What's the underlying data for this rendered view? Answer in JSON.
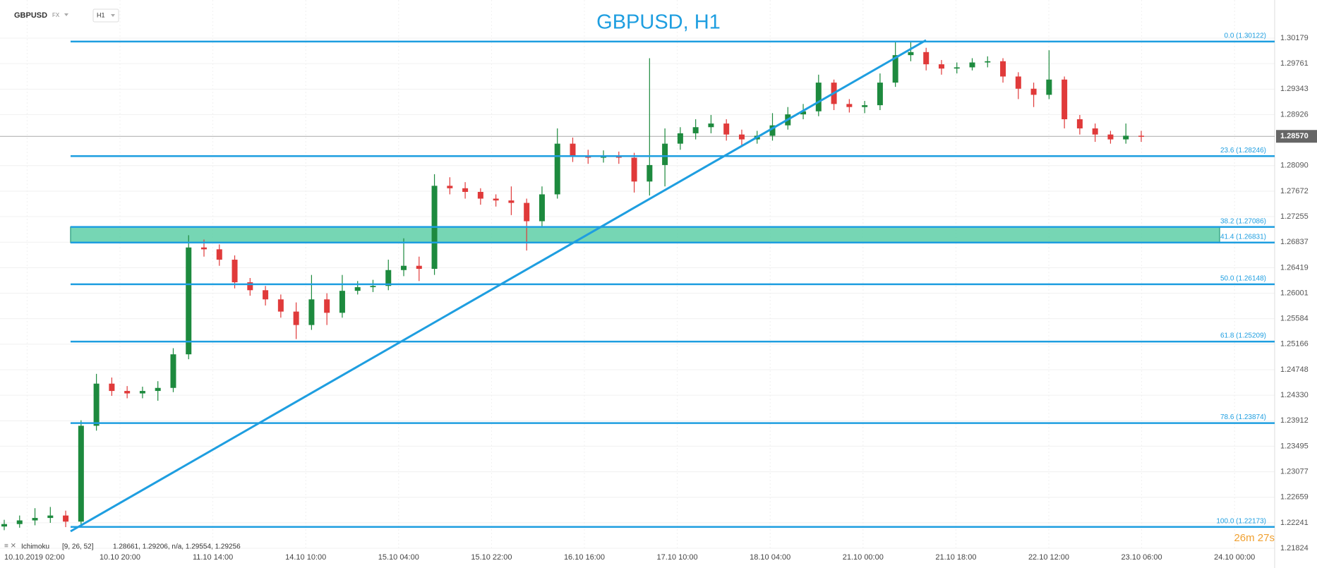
{
  "header": {
    "symbol": "GBPUSD",
    "market": "FX",
    "timeframe": "H1"
  },
  "chart_data": {
    "type": "candlestick",
    "title": "GBPUSD, H1",
    "open": [
      1.2218,
      1.2222,
      1.2228,
      1.2232,
      1.2236,
      1.2226,
      1.2383,
      1.2452,
      1.244,
      1.2436,
      1.244,
      1.2445,
      1.25,
      1.2675,
      1.2672,
      1.2655,
      1.2618,
      1.2605,
      1.259,
      1.257,
      1.2548,
      1.259,
      1.2568,
      1.2604,
      1.261,
      1.2612,
      1.2638,
      1.2645,
      1.264,
      1.2776,
      1.2772,
      1.2766,
      1.2755,
      1.2752,
      1.2748,
      1.2718,
      1.2762,
      1.2845,
      1.2826,
      1.2822,
      1.2826,
      1.2822,
      1.2783,
      1.281,
      1.2845,
      1.2862,
      1.2872,
      1.2878,
      1.286,
      1.2852,
      1.2858,
      1.2875,
      1.2893,
      1.2898,
      1.2945,
      1.291,
      1.2905,
      1.2908,
      1.2945,
      1.299,
      1.2995,
      1.2975,
      1.2968,
      1.297,
      1.2978,
      1.298,
      1.2955,
      1.2935,
      1.2925,
      1.295,
      1.2885,
      1.287,
      1.286,
      1.2852,
      1.2858
    ],
    "high": [
      1.2229,
      1.2236,
      1.2248,
      1.225,
      1.2244,
      1.2392,
      1.2468,
      1.2462,
      1.2448,
      1.2447,
      1.2456,
      1.251,
      1.2695,
      1.2688,
      1.268,
      1.2662,
      1.2625,
      1.2612,
      1.2598,
      1.2585,
      1.263,
      1.26,
      1.263,
      1.262,
      1.2622,
      1.2655,
      1.269,
      1.266,
      1.2795,
      1.279,
      1.2782,
      1.2772,
      1.2762,
      1.2775,
      1.2755,
      1.2775,
      1.287,
      1.2855,
      1.2835,
      1.2834,
      1.2832,
      1.283,
      1.2985,
      1.287,
      1.2872,
      1.2885,
      1.2892,
      1.2885,
      1.2868,
      1.2866,
      1.2895,
      1.2905,
      1.291,
      1.2958,
      1.295,
      1.2918,
      1.2915,
      1.296,
      1.3012,
      1.3012,
      1.3002,
      1.2982,
      1.2978,
      1.2985,
      1.2988,
      1.2985,
      1.2962,
      1.2945,
      1.2998,
      1.2955,
      1.2892,
      1.2878,
      1.2866,
      1.2878,
      1.2866
    ],
    "low": [
      1.2212,
      1.2216,
      1.222,
      1.2224,
      1.2217,
      1.222,
      1.2375,
      1.2432,
      1.2428,
      1.2428,
      1.2424,
      1.2438,
      1.2492,
      1.266,
      1.2645,
      1.2608,
      1.2596,
      1.258,
      1.256,
      1.2525,
      1.254,
      1.2548,
      1.256,
      1.2598,
      1.2602,
      1.2605,
      1.2628,
      1.262,
      1.263,
      1.2762,
      1.2755,
      1.2745,
      1.2742,
      1.2728,
      1.267,
      1.271,
      1.2755,
      1.2815,
      1.2812,
      1.2814,
      1.2812,
      1.2765,
      1.276,
      1.2775,
      1.2835,
      1.2852,
      1.2862,
      1.285,
      1.2842,
      1.2845,
      1.285,
      1.2868,
      1.2885,
      1.289,
      1.29,
      1.2896,
      1.2895,
      1.29,
      1.2938,
      1.298,
      1.2965,
      1.2958,
      1.296,
      1.2965,
      1.297,
      1.2945,
      1.2918,
      1.2905,
      1.2918,
      1.287,
      1.286,
      1.2848,
      1.2845,
      1.2845,
      1.2848
    ],
    "close": [
      1.2222,
      1.2228,
      1.2232,
      1.2236,
      1.2226,
      1.2383,
      1.2452,
      1.244,
      1.2436,
      1.244,
      1.2445,
      1.25,
      1.2675,
      1.2672,
      1.2655,
      1.2618,
      1.2605,
      1.259,
      1.257,
      1.2548,
      1.259,
      1.2568,
      1.2604,
      1.261,
      1.2612,
      1.2638,
      1.2645,
      1.264,
      1.2776,
      1.2772,
      1.2766,
      1.2755,
      1.2752,
      1.2748,
      1.2718,
      1.2762,
      1.2845,
      1.2826,
      1.2822,
      1.2826,
      1.2822,
      1.2783,
      1.281,
      1.2845,
      1.2862,
      1.2872,
      1.2878,
      1.286,
      1.2852,
      1.2858,
      1.2875,
      1.2893,
      1.2898,
      1.2945,
      1.291,
      1.2905,
      1.2908,
      1.2945,
      1.299,
      1.2995,
      1.2975,
      1.2968,
      1.297,
      1.2978,
      1.298,
      1.2955,
      1.2935,
      1.2925,
      1.295,
      1.2885,
      1.287,
      1.286,
      1.2852,
      1.2858,
      1.2857
    ],
    "up_color": "#1d8a3e",
    "down_color": "#e03a3a",
    "ylim": [
      1.21824,
      1.30179
    ],
    "yticks": [
      1.30179,
      1.29761,
      1.29343,
      1.28926,
      {
        "value": 1.2809,
        "label": "1.28090"
      },
      1.27672,
      1.27255,
      1.26837,
      1.26419,
      1.26001,
      1.25584,
      1.25166,
      1.24748,
      {
        "value": 1.2433,
        "label": "1.24330"
      },
      1.23912,
      1.23495,
      1.23077,
      1.22659,
      1.22241,
      1.21824
    ],
    "grid": true,
    "xtick_labels": [
      "10.10.2019 02:00",
      "10.10 20:00",
      "11.10 14:00",
      "14.10 10:00",
      "15.10 04:00",
      "15.10 22:00",
      "16.10 16:00",
      "17.10 10:00",
      "18.10 04:00",
      "21.10 00:00",
      "21.10 18:00",
      "22.10 12:00",
      "23.10 06:00",
      "24.10 00:00"
    ],
    "current_price": {
      "value": 1.2857,
      "label": "1.28570"
    },
    "fib_color": "#1e9ee0",
    "fib_levels": [
      {
        "value": 1.30122,
        "label": "0.0 (1.30122)"
      },
      {
        "value": 1.28246,
        "label": "23.6 (1.28246)"
      },
      {
        "value": 1.27086,
        "label": "38.2 (1.27086)"
      },
      {
        "value": 1.26831,
        "label": "41.4 (1.26831)"
      },
      {
        "value": 1.26148,
        "label": "50.0 (1.26148)"
      },
      {
        "value": 1.25209,
        "label": "61.8 (1.25209)"
      },
      {
        "value": 1.23874,
        "label": "78.6 (1.23874)"
      },
      {
        "value": 1.22173,
        "label": "100.0 (1.22173)"
      }
    ]
  },
  "indicator": {
    "name": "Ichimoku",
    "params": "[9, 26, 52]",
    "values": "1.28661, 1.29206, n/a, 1.29554, 1.29256"
  },
  "countdown": "26m 27s"
}
